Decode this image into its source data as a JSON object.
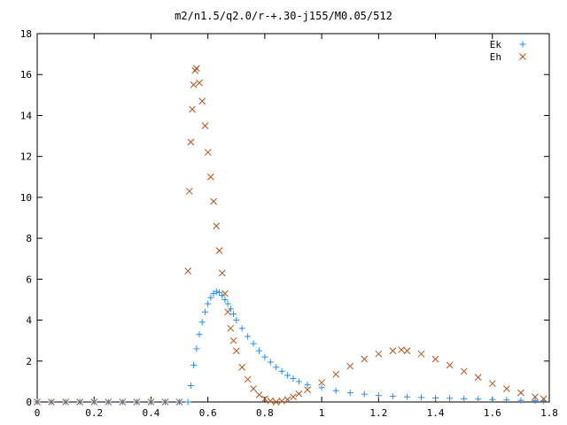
{
  "chart_data": {
    "type": "scatter",
    "title": "m2/n1.5/q2.0/r-+.30-j155/M0.05/512",
    "xlabel": "",
    "ylabel": "",
    "xlim": [
      0,
      1.8
    ],
    "ylim": [
      0,
      18
    ],
    "x_ticks": [
      "0",
      "0.2",
      "0.4",
      "0.6",
      "0.8",
      "1",
      "1.2",
      "1.4",
      "1.6",
      "1.8"
    ],
    "y_ticks": [
      "0",
      "2",
      "4",
      "6",
      "8",
      "10",
      "12",
      "14",
      "16",
      "18"
    ],
    "grid": false,
    "legend_position": "top-right",
    "series": [
      {
        "name": "Ek",
        "marker": "plus",
        "color": "#1e90ff",
        "x": [
          0.0,
          0.05,
          0.1,
          0.15,
          0.2,
          0.25,
          0.3,
          0.35,
          0.4,
          0.45,
          0.5,
          0.53,
          0.54,
          0.55,
          0.56,
          0.57,
          0.58,
          0.59,
          0.6,
          0.61,
          0.62,
          0.63,
          0.64,
          0.65,
          0.66,
          0.67,
          0.68,
          0.69,
          0.7,
          0.72,
          0.74,
          0.76,
          0.78,
          0.8,
          0.82,
          0.84,
          0.86,
          0.88,
          0.9,
          0.92,
          0.95,
          1.0,
          1.05,
          1.1,
          1.15,
          1.2,
          1.25,
          1.3,
          1.35,
          1.4,
          1.45,
          1.5,
          1.55,
          1.6,
          1.65,
          1.7,
          1.75,
          1.78
        ],
        "y": [
          0.0,
          0.0,
          0.0,
          0.0,
          0.0,
          0.0,
          0.0,
          0.0,
          0.0,
          0.0,
          0.0,
          0.0,
          0.8,
          1.8,
          2.6,
          3.3,
          3.9,
          4.4,
          4.8,
          5.1,
          5.3,
          5.4,
          5.35,
          5.2,
          5.0,
          4.8,
          4.55,
          4.3,
          4.0,
          3.6,
          3.2,
          2.85,
          2.5,
          2.2,
          1.95,
          1.7,
          1.5,
          1.3,
          1.15,
          1.0,
          0.85,
          0.7,
          0.55,
          0.45,
          0.38,
          0.32,
          0.28,
          0.25,
          0.22,
          0.2,
          0.18,
          0.16,
          0.14,
          0.12,
          0.1,
          0.08,
          0.06,
          0.05
        ]
      },
      {
        "name": "Eh",
        "marker": "cross",
        "color": "#b5531c",
        "x": [
          0.0,
          0.05,
          0.1,
          0.15,
          0.2,
          0.25,
          0.3,
          0.35,
          0.4,
          0.45,
          0.5,
          0.53,
          0.535,
          0.54,
          0.545,
          0.55,
          0.555,
          0.56,
          0.57,
          0.58,
          0.59,
          0.6,
          0.61,
          0.62,
          0.63,
          0.64,
          0.65,
          0.66,
          0.67,
          0.68,
          0.69,
          0.7,
          0.72,
          0.74,
          0.76,
          0.78,
          0.8,
          0.82,
          0.84,
          0.86,
          0.88,
          0.9,
          0.92,
          0.95,
          1.0,
          1.05,
          1.1,
          1.15,
          1.2,
          1.25,
          1.28,
          1.3,
          1.35,
          1.4,
          1.45,
          1.5,
          1.55,
          1.6,
          1.65,
          1.7,
          1.75,
          1.78
        ],
        "y": [
          0.0,
          0.0,
          0.0,
          0.0,
          0.0,
          0.0,
          0.0,
          0.0,
          0.0,
          0.0,
          0.0,
          6.4,
          10.3,
          12.7,
          14.3,
          15.5,
          16.2,
          16.3,
          15.6,
          14.7,
          13.5,
          12.2,
          11.0,
          9.8,
          8.6,
          7.4,
          6.3,
          5.3,
          4.4,
          3.6,
          3.0,
          2.5,
          1.7,
          1.1,
          0.65,
          0.35,
          0.15,
          0.05,
          0.0,
          0.05,
          0.12,
          0.25,
          0.4,
          0.6,
          0.95,
          1.35,
          1.75,
          2.1,
          2.35,
          2.5,
          2.55,
          2.5,
          2.35,
          2.1,
          1.8,
          1.5,
          1.2,
          0.9,
          0.65,
          0.45,
          0.25,
          0.15
        ]
      }
    ]
  }
}
